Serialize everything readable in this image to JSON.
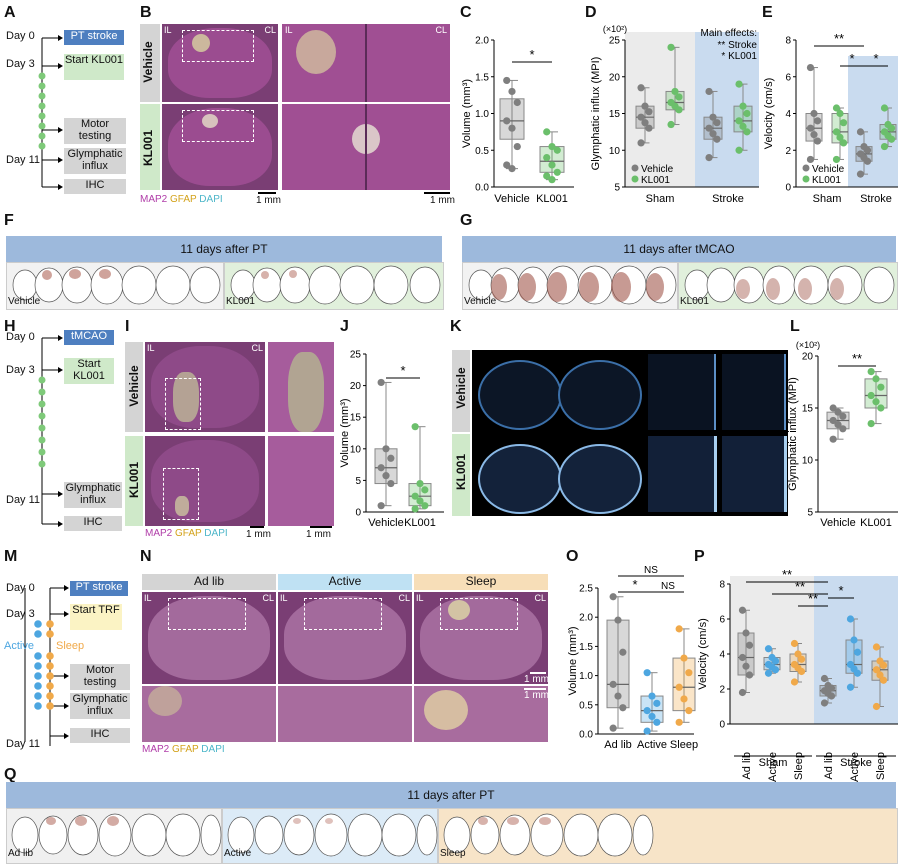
{
  "panel_letters": {
    "A": "A",
    "B": "B",
    "C": "C",
    "D": "D",
    "E": "E",
    "F": "F",
    "G": "G",
    "H": "H",
    "I": "I",
    "J": "J",
    "K": "K",
    "L": "L",
    "M": "M",
    "N": "N",
    "O": "O",
    "P": "P",
    "Q": "Q"
  },
  "timeline_A": {
    "days": [
      "Day 0",
      "Day 3",
      "Day 11"
    ],
    "boxes": [
      "PT stroke",
      "Start KL001",
      "Motor testing",
      "Glymphatic influx",
      "IHC"
    ]
  },
  "timeline_H": {
    "days": [
      "Day 0",
      "Day 3",
      "Day 11"
    ],
    "boxes": [
      "tMCAO",
      "Start KL001",
      "Glymphatic influx",
      "IHC"
    ]
  },
  "timeline_M": {
    "days": [
      "Day 0",
      "Day 3",
      "Day 11"
    ],
    "boxes": [
      "PT stroke",
      "Start TRF",
      "Motor testing",
      "Glymphatic influx",
      "IHC"
    ],
    "active": "Active",
    "sleep": "Sleep"
  },
  "micro_B": {
    "row_labels": [
      "Vehicle",
      "KL001"
    ],
    "il": "IL",
    "cl": "CL",
    "stain_map2": "MAP2",
    "stain_gfap": "GFAP",
    "stain_dapi": "DAPI",
    "scale1": "1 mm",
    "scale2": "1 mm"
  },
  "micro_I": {
    "row_labels": [
      "Vehicle",
      "KL001"
    ],
    "il": "IL",
    "cl": "CL",
    "stain_map2": "MAP2",
    "stain_gfap": "GFAP",
    "stain_dapi": "DAPI",
    "scale1": "1 mm",
    "scale2": "1 mm"
  },
  "micro_K": {
    "row_labels": [
      "Vehicle",
      "KL001"
    ]
  },
  "micro_N": {
    "col_labels": [
      "Ad lib",
      "Active",
      "Sleep"
    ],
    "il": "IL",
    "cl": "CL",
    "stain_map2": "MAP2",
    "stain_gfap": "GFAP",
    "stain_dapi": "DAPI",
    "scale1": "1 mm",
    "scale2": "1 mm"
  },
  "banner_F": {
    "title": "11 days after PT",
    "left": "Vehicle",
    "right": "KL001"
  },
  "banner_G": {
    "title": "11 days after tMCAO",
    "left": "Vehicle",
    "right": "KL001"
  },
  "banner_Q": {
    "title": "11 days after PT",
    "labels": [
      "Ad lib",
      "Active",
      "Sleep"
    ]
  },
  "colors": {
    "vehicle": "#7f7f7f",
    "kl001": "#6bbf6b",
    "active": "#4da6e0",
    "sleep": "#f0a94a",
    "banner": "#9db9dc",
    "sham_bg": "#ebebeb",
    "stroke_bg": "#c9dbef",
    "tissue": "#7a3e74"
  },
  "chart_data": [
    {
      "panel": "C",
      "type": "box",
      "ylabel": "Volume (mm³)",
      "ylim": [
        0,
        2.0
      ],
      "yticks": [
        "0.0",
        "0.5",
        "1.0",
        "1.5",
        "2.0"
      ],
      "categories": [
        "Vehicle",
        "KL001"
      ],
      "significance": "*",
      "series": [
        {
          "name": "Vehicle",
          "median": 0.9,
          "q1": 0.65,
          "q3": 1.2,
          "min": 0.25,
          "max": 1.45,
          "points": [
            1.45,
            1.3,
            1.15,
            0.9,
            0.8,
            0.55,
            0.3,
            0.25
          ]
        },
        {
          "name": "KL001",
          "median": 0.35,
          "q1": 0.2,
          "q3": 0.55,
          "min": 0.1,
          "max": 0.75,
          "points": [
            0.75,
            0.55,
            0.5,
            0.4,
            0.3,
            0.2,
            0.15,
            0.1
          ]
        }
      ]
    },
    {
      "panel": "D",
      "type": "box",
      "ylabel": "Glymphatic influx (MPI)",
      "ymult": "(×10²)",
      "ylim": [
        5,
        25
      ],
      "yticks": [
        "5",
        "10",
        "15",
        "20",
        "25"
      ],
      "groups": [
        "Sham",
        "Stroke"
      ],
      "legend": [
        "Vehicle",
        "KL001"
      ],
      "annotation_title": "Main effects:",
      "annotations": [
        {
          "stars": "**",
          "text": "Stroke"
        },
        {
          "stars": "*",
          "text": "KL001"
        }
      ],
      "series": [
        {
          "group": "Sham",
          "name": "Vehicle",
          "median": 14.5,
          "q1": 13,
          "q3": 16,
          "min": 11,
          "max": 18.5
        },
        {
          "group": "Sham",
          "name": "KL001",
          "median": 16.5,
          "q1": 15.5,
          "q3": 18,
          "min": 13.5,
          "max": 24
        },
        {
          "group": "Stroke",
          "name": "Vehicle",
          "median": 13,
          "q1": 11.5,
          "q3": 14.5,
          "min": 9,
          "max": 18
        },
        {
          "group": "Stroke",
          "name": "KL001",
          "median": 14,
          "q1": 12.5,
          "q3": 16,
          "min": 10,
          "max": 19
        }
      ]
    },
    {
      "panel": "E",
      "type": "box",
      "ylabel": "Velocity (cm/s)",
      "ylim": [
        0,
        8
      ],
      "yticks": [
        "0",
        "2",
        "4",
        "6",
        "8"
      ],
      "groups": [
        "Sham",
        "Stroke"
      ],
      "legend": [
        "Vehicle",
        "KL001"
      ],
      "significance": [
        "**",
        "*",
        "*"
      ],
      "series": [
        {
          "group": "Sham",
          "name": "Vehicle",
          "median": 3.2,
          "q1": 2.5,
          "q3": 4.0,
          "min": 1.5,
          "max": 6.5
        },
        {
          "group": "Sham",
          "name": "KL001",
          "median": 3.0,
          "q1": 2.4,
          "q3": 4.0,
          "min": 1.5,
          "max": 4.3
        },
        {
          "group": "Stroke",
          "name": "Vehicle",
          "median": 1.8,
          "q1": 1.4,
          "q3": 2.2,
          "min": 0.7,
          "max": 3.0
        },
        {
          "group": "Stroke",
          "name": "KL001",
          "median": 3.0,
          "q1": 2.6,
          "q3": 3.4,
          "min": 2.2,
          "max": 4.3
        }
      ]
    },
    {
      "panel": "J",
      "type": "box",
      "ylabel": "Volume (mm³)",
      "ylim": [
        0,
        25
      ],
      "yticks": [
        "0",
        "5",
        "10",
        "15",
        "20",
        "25"
      ],
      "categories": [
        "Vehicle",
        "KL001"
      ],
      "significance": "*",
      "series": [
        {
          "name": "Vehicle",
          "median": 7,
          "q1": 4.5,
          "q3": 10,
          "min": 1,
          "max": 20.5
        },
        {
          "name": "KL001",
          "median": 2.5,
          "q1": 1,
          "q3": 4.5,
          "min": 0.5,
          "max": 13.5
        }
      ]
    },
    {
      "panel": "L",
      "type": "box",
      "ylabel": "Glymphatic influx (MPI)",
      "ymult": "(×10²)",
      "ylim": [
        5,
        20
      ],
      "yticks": [
        "5",
        "10",
        "15",
        "20"
      ],
      "categories": [
        "Vehicle",
        "KL001"
      ],
      "significance": "**",
      "series": [
        {
          "name": "Vehicle",
          "median": 13.8,
          "q1": 13,
          "q3": 14.6,
          "min": 12,
          "max": 15
        },
        {
          "name": "KL001",
          "median": 16.2,
          "q1": 15,
          "q3": 17.8,
          "min": 13.5,
          "max": 18.5
        }
      ]
    },
    {
      "panel": "O",
      "type": "box",
      "ylabel": "Volume (mm³)",
      "ylim": [
        0,
        2.5
      ],
      "yticks": [
        "0.0",
        "0.5",
        "1.0",
        "1.5",
        "2.0",
        "2.5"
      ],
      "categories": [
        "Ad lib",
        "Active",
        "Sleep"
      ],
      "significance": [
        "*",
        "NS",
        "NS"
      ],
      "series": [
        {
          "name": "Ad lib",
          "median": 0.85,
          "q1": 0.45,
          "q3": 1.95,
          "min": 0.1,
          "max": 2.35
        },
        {
          "name": "Active",
          "median": 0.4,
          "q1": 0.2,
          "q3": 0.65,
          "min": 0.05,
          "max": 1.05
        },
        {
          "name": "Sleep",
          "median": 0.8,
          "q1": 0.4,
          "q3": 1.3,
          "min": 0.2,
          "max": 1.8
        }
      ]
    },
    {
      "panel": "P",
      "type": "box",
      "ylabel": "Velocity (cm/s)",
      "ylim": [
        0,
        8
      ],
      "yticks": [
        "0",
        "2",
        "4",
        "6",
        "8"
      ],
      "groups": [
        "Sham",
        "Stroke"
      ],
      "categories": [
        "Ad lib",
        "Active",
        "Sleep"
      ],
      "significance": [
        "**",
        "**",
        "**",
        "*"
      ],
      "series": [
        {
          "group": "Sham",
          "name": "Ad lib",
          "median": 3.8,
          "q1": 2.8,
          "q3": 5.2,
          "min": 1.8,
          "max": 6.5
        },
        {
          "group": "Sham",
          "name": "Active",
          "median": 3.4,
          "q1": 3.1,
          "q3": 3.8,
          "min": 2.9,
          "max": 4.3
        },
        {
          "group": "Sham",
          "name": "Sleep",
          "median": 3.4,
          "q1": 3.0,
          "q3": 4.0,
          "min": 2.4,
          "max": 4.6
        },
        {
          "group": "Stroke",
          "name": "Ad lib",
          "median": 1.9,
          "q1": 1.6,
          "q3": 2.2,
          "min": 1.2,
          "max": 2.6
        },
        {
          "group": "Stroke",
          "name": "Active",
          "median": 3.4,
          "q1": 2.9,
          "q3": 4.8,
          "min": 2.1,
          "max": 6.0
        },
        {
          "group": "Stroke",
          "name": "Sleep",
          "median": 3.1,
          "q1": 2.5,
          "q3": 3.6,
          "min": 1.0,
          "max": 4.4
        }
      ]
    }
  ]
}
